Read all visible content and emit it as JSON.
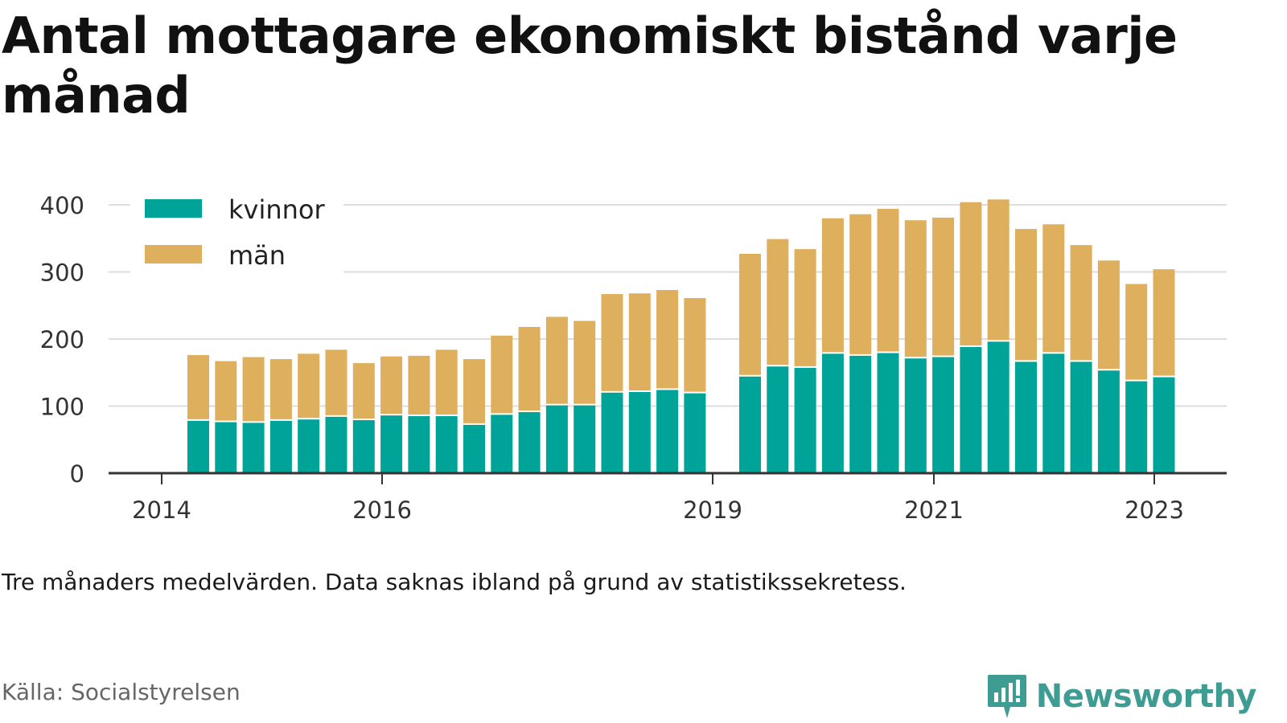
{
  "title": "Antal mottagare ekonomiskt bistånd varje månad",
  "note": "Tre månaders medelvärden. Data saknas ibland på grund av statistikssekretess.",
  "source": "Källa: Socialstyrelsen",
  "brand": "Newsworthy",
  "colors": {
    "kvinnor": "#00a398",
    "man": "#deaf5c",
    "brand": "#3f9c93",
    "grid": "#dddddd",
    "axis": "#333333"
  },
  "chart_data": {
    "type": "bar",
    "stacked": true,
    "x_tick_labels": [
      "2014",
      "2016",
      "2019",
      "2021",
      "2023"
    ],
    "y_ticks": [
      0,
      100,
      200,
      300,
      400
    ],
    "ylim": [
      0,
      420
    ],
    "grid": true,
    "legend_position": "top-left",
    "categories": [
      "2014-Q2",
      "2014-Q3",
      "2014-Q4",
      "2015-Q1",
      "2015-Q2",
      "2015-Q3",
      "2015-Q4",
      "2016-Q1",
      "2016-Q2",
      "2016-Q3",
      "2016-Q4",
      "2017-Q1",
      "2017-Q2",
      "2017-Q3",
      "2017-Q4",
      "2018-Q1",
      "2018-Q2",
      "2018-Q3",
      "2018-Q4",
      "2019-Q1",
      "2019-Q2",
      "2019-Q3",
      "2019-Q4",
      "2020-Q1",
      "2020-Q2",
      "2020-Q3",
      "2020-Q4",
      "2021-Q1",
      "2021-Q2",
      "2021-Q3",
      "2021-Q4",
      "2022-Q1",
      "2022-Q2",
      "2022-Q3",
      "2022-Q4",
      "2023-Q1"
    ],
    "series": [
      {
        "name": "kvinnor",
        "values": [
          78,
          76,
          75,
          78,
          80,
          84,
          79,
          86,
          85,
          85,
          72,
          87,
          91,
          101,
          101,
          120,
          121,
          124,
          119,
          null,
          144,
          159,
          157,
          178,
          175,
          179,
          171,
          173,
          188,
          196,
          166,
          178,
          166,
          153,
          137,
          143
        ]
      },
      {
        "name": "män",
        "values": [
          98,
          91,
          98,
          92,
          98,
          100,
          85,
          88,
          90,
          99,
          98,
          118,
          127,
          132,
          126,
          147,
          147,
          149,
          142,
          null,
          183,
          190,
          177,
          202,
          211,
          215,
          206,
          208,
          216,
          212,
          198,
          193,
          174,
          164,
          145,
          161
        ]
      }
    ]
  }
}
